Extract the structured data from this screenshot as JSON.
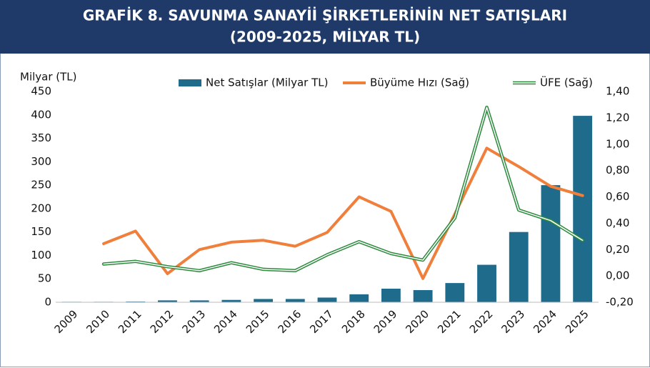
{
  "chart_data": {
    "type": "bar",
    "title": [
      "GRAFİK 8. SAVUNMA SANAYİİ ŞİRKETLERİNİN NET SATIŞLARI",
      "(2009-2025, MİLYAR TL)"
    ],
    "y_label": "Milyar (TL)",
    "categories": [
      "2009",
      "2010",
      "2011",
      "2012",
      "2013",
      "2014",
      "2015",
      "2016",
      "2017",
      "2018",
      "2019",
      "2020",
      "2021",
      "2022",
      "2023",
      "2024",
      "2025"
    ],
    "series": [
      {
        "name": "Net Satışlar (Milyar TL)",
        "type": "bar",
        "color": "#1f6b8c",
        "values": [
          1,
          1,
          1.5,
          4,
          4,
          5,
          7,
          7,
          10,
          17,
          29,
          26,
          41,
          80,
          150,
          250,
          398
        ]
      },
      {
        "name": "Büyüme Hızı (Sağ)",
        "type": "line",
        "axis": "y2",
        "color": "#f07f3c",
        "values": [
          null,
          0.245,
          0.34,
          0.017,
          0.2,
          0.256,
          0.27,
          0.225,
          0.33,
          0.6,
          0.49,
          -0.02,
          0.47,
          0.97,
          0.83,
          0.68,
          0.61
        ]
      },
      {
        "name": "ÜFE (Sağ)",
        "type": "line",
        "axis": "y2",
        "color": "#2e8b3e",
        "line_style": "double",
        "values": [
          null,
          0.09,
          0.11,
          0.07,
          0.04,
          0.1,
          0.05,
          0.04,
          0.16,
          0.26,
          0.17,
          0.12,
          0.44,
          1.28,
          0.5,
          0.42,
          0.27
        ]
      }
    ],
    "ylim": [
      0,
      450
    ],
    "yticks": [
      0,
      50,
      100,
      150,
      200,
      250,
      300,
      350,
      400,
      450
    ],
    "y2lim": [
      -0.2,
      1.4
    ],
    "y2ticks": [
      {
        "value": -0.2,
        "label": "-0,20"
      },
      {
        "value": 0,
        "label": "0,00"
      },
      {
        "value": 0.2,
        "label": "0,20"
      },
      {
        "value": 0.4,
        "label": "0,40"
      },
      {
        "value": 0.6,
        "label": "0,60"
      },
      {
        "value": 0.8,
        "label": "0,80"
      },
      {
        "value": 1.0,
        "label": "1,00"
      },
      {
        "value": 1.2,
        "label": "1,20"
      },
      {
        "value": 1.4,
        "label": "1,40"
      }
    ],
    "grid": false,
    "legend": "top"
  }
}
